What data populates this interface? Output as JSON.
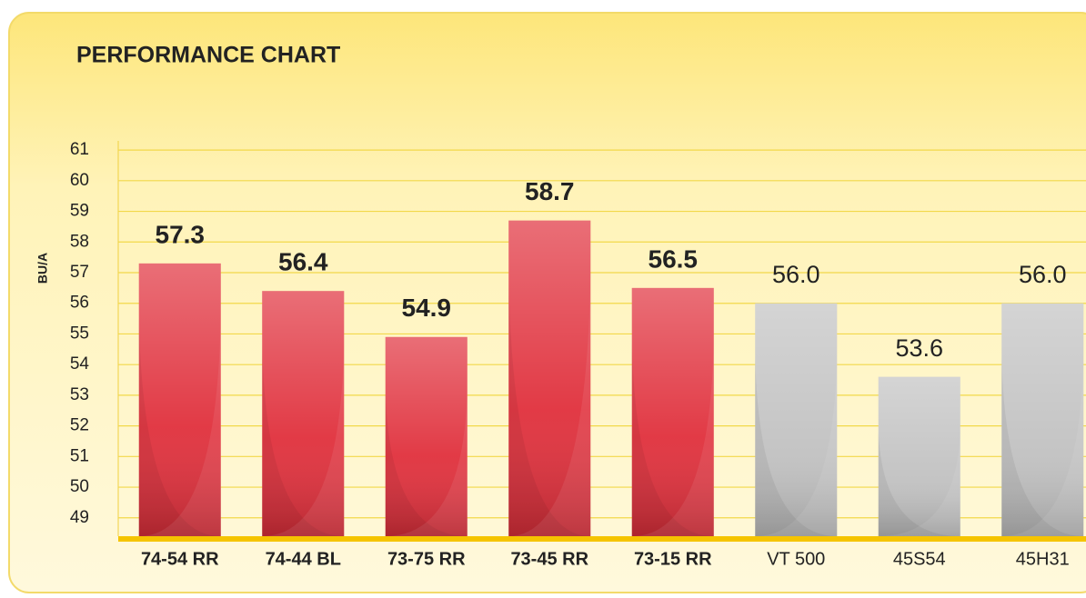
{
  "chart_data": {
    "type": "bar",
    "title": "PERFORMANCE CHART",
    "y_label": "BU/A",
    "categories": [
      "74-54 RR",
      "74-44 BL",
      "73-75 RR",
      "73-45 RR",
      "73-15 RR",
      "VT 500",
      "45S54",
      "45H31"
    ],
    "values": [
      57.3,
      56.4,
      54.9,
      58.7,
      56.5,
      56.0,
      53.6,
      56.0
    ],
    "value_labels": [
      "57.3",
      "56.4",
      "54.9",
      "58.7",
      "56.5",
      "56.0",
      "53.6",
      "56.0"
    ],
    "colors": [
      "#e0303c",
      "#e0303c",
      "#e0303c",
      "#e0303c",
      "#e0303c",
      "#c2c2c2",
      "#c2c2c2",
      "#c2c2c2"
    ],
    "ylim": [
      48.4,
      61.3
    ],
    "yticks": [
      49,
      50,
      51,
      52,
      53,
      54,
      55,
      56,
      57,
      58,
      59,
      60,
      61
    ],
    "grid": true
  }
}
